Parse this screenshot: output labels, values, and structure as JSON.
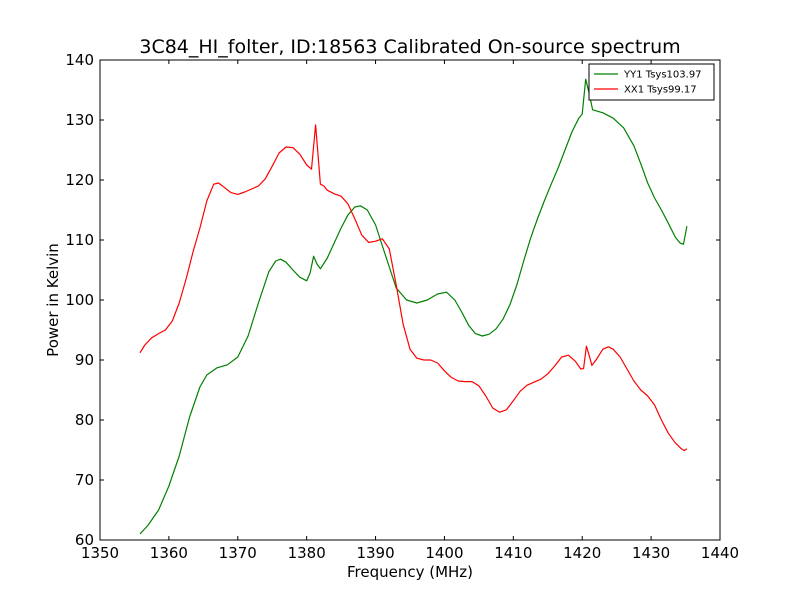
{
  "chart_data": {
    "type": "line",
    "title": "3C84_HI_folter, ID:18563 Calibrated On-source spectrum",
    "xlabel": "Frequency (MHz)",
    "ylabel": "Power in Kelvin",
    "xlim": [
      1350,
      1440
    ],
    "ylim": [
      60,
      140
    ],
    "xticks": [
      1350,
      1360,
      1370,
      1380,
      1390,
      1400,
      1410,
      1420,
      1430,
      1440
    ],
    "yticks": [
      60,
      70,
      80,
      90,
      100,
      110,
      120,
      130,
      140
    ],
    "grid": false,
    "legend_position": "top-right",
    "series": [
      {
        "name": "YY1 Tsys103.97",
        "color": "#008000",
        "points": [
          [
            1355.8,
            61.0
          ],
          [
            1357.0,
            62.5
          ],
          [
            1358.5,
            65.0
          ],
          [
            1360.0,
            69.0
          ],
          [
            1361.5,
            74.0
          ],
          [
            1363.0,
            80.5
          ],
          [
            1364.5,
            85.5
          ],
          [
            1365.5,
            87.5
          ],
          [
            1367.0,
            88.7
          ],
          [
            1368.5,
            89.2
          ],
          [
            1370.0,
            90.5
          ],
          [
            1371.5,
            94.0
          ],
          [
            1373.0,
            99.5
          ],
          [
            1374.5,
            104.7
          ],
          [
            1375.5,
            106.5
          ],
          [
            1376.2,
            106.8
          ],
          [
            1377.0,
            106.3
          ],
          [
            1378.0,
            105.0
          ],
          [
            1379.0,
            103.8
          ],
          [
            1380.0,
            103.2
          ],
          [
            1380.5,
            104.5
          ],
          [
            1381.0,
            107.3
          ],
          [
            1381.5,
            106.0
          ],
          [
            1382.0,
            105.2
          ],
          [
            1383.0,
            107.0
          ],
          [
            1384.0,
            109.5
          ],
          [
            1385.0,
            112.0
          ],
          [
            1386.0,
            114.2
          ],
          [
            1387.0,
            115.5
          ],
          [
            1387.8,
            115.7
          ],
          [
            1388.8,
            115.0
          ],
          [
            1390.0,
            112.5
          ],
          [
            1391.0,
            109.0
          ],
          [
            1392.0,
            105.5
          ],
          [
            1393.0,
            102.0
          ],
          [
            1394.5,
            100.0
          ],
          [
            1396.0,
            99.5
          ],
          [
            1397.5,
            100.0
          ],
          [
            1399.0,
            101.0
          ],
          [
            1400.3,
            101.3
          ],
          [
            1401.5,
            100.0
          ],
          [
            1402.5,
            98.0
          ],
          [
            1403.5,
            95.8
          ],
          [
            1404.5,
            94.4
          ],
          [
            1405.5,
            94.0
          ],
          [
            1406.5,
            94.3
          ],
          [
            1407.5,
            95.2
          ],
          [
            1408.5,
            96.8
          ],
          [
            1409.5,
            99.2
          ],
          [
            1410.5,
            102.5
          ],
          [
            1411.5,
            106.5
          ],
          [
            1412.5,
            110.3
          ],
          [
            1413.5,
            113.5
          ],
          [
            1414.5,
            116.5
          ],
          [
            1415.5,
            119.3
          ],
          [
            1416.5,
            122.0
          ],
          [
            1417.5,
            125.0
          ],
          [
            1418.5,
            128.0
          ],
          [
            1419.5,
            130.3
          ],
          [
            1420.0,
            131.0
          ],
          [
            1420.5,
            136.8
          ],
          [
            1421.0,
            134.5
          ],
          [
            1421.5,
            131.7
          ],
          [
            1423.0,
            131.2
          ],
          [
            1424.5,
            130.3
          ],
          [
            1426.0,
            128.7
          ],
          [
            1427.5,
            125.7
          ],
          [
            1428.5,
            122.7
          ],
          [
            1429.5,
            119.5
          ],
          [
            1430.5,
            117.0
          ],
          [
            1431.5,
            115.0
          ],
          [
            1432.5,
            112.8
          ],
          [
            1433.5,
            110.5
          ],
          [
            1434.2,
            109.5
          ],
          [
            1434.7,
            109.3
          ],
          [
            1435.2,
            112.3
          ]
        ]
      },
      {
        "name": "XX1 Tsys99.17",
        "color": "#ff0000",
        "points": [
          [
            1355.8,
            91.2
          ],
          [
            1356.5,
            92.5
          ],
          [
            1357.5,
            93.7
          ],
          [
            1358.5,
            94.4
          ],
          [
            1359.5,
            95.0
          ],
          [
            1360.5,
            96.5
          ],
          [
            1361.5,
            99.5
          ],
          [
            1362.5,
            103.5
          ],
          [
            1363.5,
            108.0
          ],
          [
            1364.5,
            112.0
          ],
          [
            1365.5,
            116.5
          ],
          [
            1366.5,
            119.3
          ],
          [
            1367.2,
            119.5
          ],
          [
            1368.0,
            118.8
          ],
          [
            1369.0,
            117.9
          ],
          [
            1370.0,
            117.6
          ],
          [
            1371.0,
            118.0
          ],
          [
            1372.0,
            118.5
          ],
          [
            1373.0,
            119.0
          ],
          [
            1374.0,
            120.2
          ],
          [
            1375.0,
            122.3
          ],
          [
            1376.0,
            124.5
          ],
          [
            1377.0,
            125.5
          ],
          [
            1378.0,
            125.4
          ],
          [
            1379.0,
            124.3
          ],
          [
            1380.0,
            122.5
          ],
          [
            1380.7,
            121.8
          ],
          [
            1381.3,
            129.2
          ],
          [
            1382.0,
            119.3
          ],
          [
            1382.5,
            119.0
          ],
          [
            1383.0,
            118.3
          ],
          [
            1384.0,
            117.7
          ],
          [
            1385.0,
            117.3
          ],
          [
            1386.0,
            116.0
          ],
          [
            1387.0,
            113.5
          ],
          [
            1388.0,
            110.8
          ],
          [
            1389.0,
            109.6
          ],
          [
            1390.0,
            109.8
          ],
          [
            1391.0,
            110.2
          ],
          [
            1392.0,
            108.5
          ],
          [
            1393.0,
            102.5
          ],
          [
            1394.0,
            96.0
          ],
          [
            1395.0,
            91.8
          ],
          [
            1396.0,
            90.3
          ],
          [
            1397.0,
            90.0
          ],
          [
            1398.0,
            90.0
          ],
          [
            1399.0,
            89.5
          ],
          [
            1400.0,
            88.2
          ],
          [
            1401.0,
            87.1
          ],
          [
            1402.0,
            86.5
          ],
          [
            1403.0,
            86.4
          ],
          [
            1404.0,
            86.4
          ],
          [
            1405.0,
            85.7
          ],
          [
            1406.0,
            84.0
          ],
          [
            1407.0,
            82.0
          ],
          [
            1408.0,
            81.3
          ],
          [
            1409.0,
            81.7
          ],
          [
            1410.0,
            83.2
          ],
          [
            1411.0,
            84.8
          ],
          [
            1412.0,
            85.8
          ],
          [
            1413.0,
            86.3
          ],
          [
            1414.0,
            86.8
          ],
          [
            1415.0,
            87.7
          ],
          [
            1416.0,
            89.0
          ],
          [
            1417.0,
            90.5
          ],
          [
            1418.0,
            90.8
          ],
          [
            1419.0,
            89.8
          ],
          [
            1419.8,
            88.5
          ],
          [
            1420.2,
            88.6
          ],
          [
            1420.6,
            92.3
          ],
          [
            1421.0,
            90.8
          ],
          [
            1421.4,
            89.1
          ],
          [
            1422.0,
            90.0
          ],
          [
            1423.0,
            91.8
          ],
          [
            1423.8,
            92.2
          ],
          [
            1424.5,
            91.8
          ],
          [
            1425.5,
            90.5
          ],
          [
            1426.5,
            88.5
          ],
          [
            1427.5,
            86.5
          ],
          [
            1428.5,
            85.0
          ],
          [
            1429.5,
            84.0
          ],
          [
            1430.5,
            82.5
          ],
          [
            1431.5,
            80.0
          ],
          [
            1432.5,
            77.8
          ],
          [
            1433.5,
            76.2
          ],
          [
            1434.3,
            75.3
          ],
          [
            1434.8,
            74.9
          ],
          [
            1435.2,
            75.2
          ]
        ]
      }
    ]
  }
}
